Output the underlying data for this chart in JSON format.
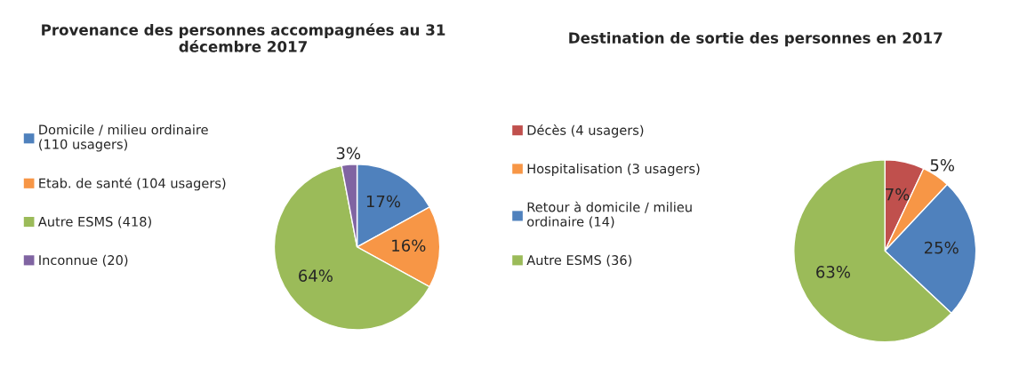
{
  "chart_data": [
    {
      "type": "pie",
      "title": "Provenance des personnes accompagnées au 31 décembre 2017",
      "categories": [
        "Domicile / milieu ordinaire (110 usagers)",
        "Etab. de santé (104 usagers)",
        "Autre ESMS (418)",
        "Inconnue (20)"
      ],
      "values": [
        17,
        16,
        64,
        3
      ],
      "value_labels": [
        "17%",
        "16%",
        "64%",
        "3%"
      ],
      "colors": [
        "#4f81bd",
        "#f79646",
        "#9bbb59",
        "#8064a2"
      ],
      "legend": "left"
    },
    {
      "type": "pie",
      "title": "Destination de sortie des personnes en 2017",
      "categories": [
        "Décès (4 usagers)",
        "Hospitalisation (3 usagers)",
        "Retour à domicile / milieu ordinaire (14)",
        "Autre ESMS (36)"
      ],
      "values": [
        7,
        5,
        25,
        63
      ],
      "value_labels": [
        "7%",
        "5%",
        "25%",
        "63%"
      ],
      "colors": [
        "#c0504d",
        "#f79646",
        "#4f81bd",
        "#9bbb59"
      ],
      "legend": "left"
    }
  ]
}
